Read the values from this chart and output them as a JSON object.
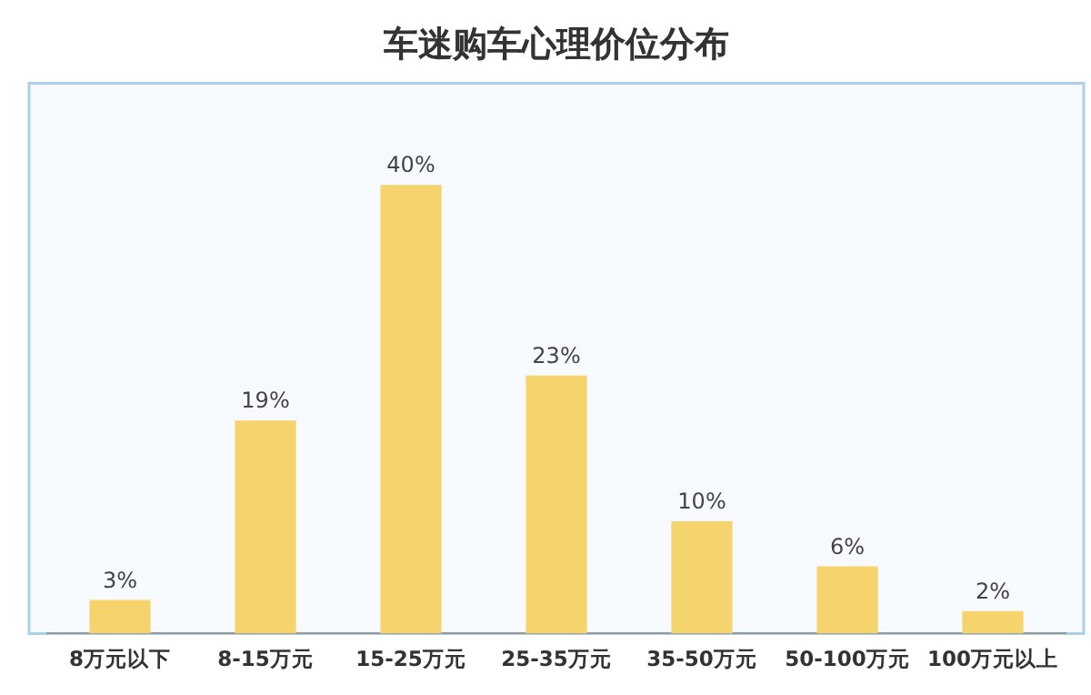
{
  "chart_data": {
    "type": "bar",
    "title": "车迷购车心理价位分布",
    "categories": [
      "8万元以下",
      "8-15万元",
      "15-25万元",
      "25-35万元",
      "35-50万元",
      "50-100万元",
      "100万元以上"
    ],
    "values": [
      3,
      19,
      40,
      23,
      10,
      6,
      2
    ],
    "value_labels": [
      "3%",
      "19%",
      "40%",
      "23%",
      "10%",
      "6%",
      "2%"
    ],
    "color": "#f5d46e",
    "grid": false,
    "legend": false
  }
}
